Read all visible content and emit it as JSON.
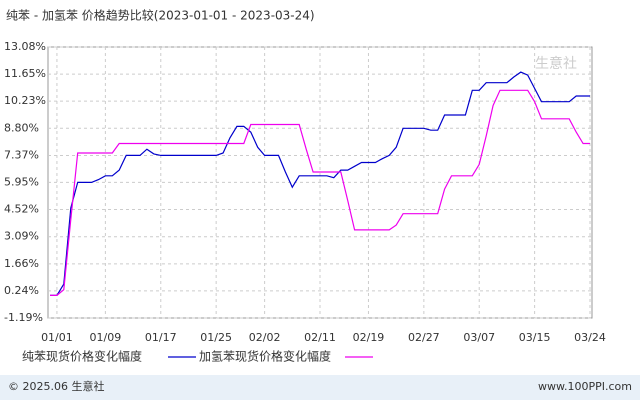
{
  "chart_data": {
    "type": "line",
    "title": "纯苯 - 加氢苯 价格趋势比较(2023-01-01 - 2023-03-24)",
    "watermark": "生意社",
    "footer_left": "© 2025.06 生意社",
    "footer_right": "www.100PPI.com",
    "categories": [
      null,
      "01/01",
      null,
      null,
      null,
      null,
      null,
      null,
      "01/09",
      null,
      null,
      null,
      null,
      null,
      null,
      null,
      "01/17",
      null,
      null,
      null,
      null,
      null,
      null,
      null,
      "01/25",
      null,
      null,
      null,
      null,
      null,
      null,
      "02/02",
      null,
      null,
      null,
      null,
      null,
      null,
      null,
      "02/11",
      null,
      null,
      null,
      null,
      null,
      null,
      "02/19",
      null,
      null,
      null,
      null,
      null,
      null,
      null,
      "02/27",
      null,
      null,
      null,
      null,
      null,
      null,
      null,
      "03/07",
      null,
      null,
      null,
      null,
      null,
      null,
      null,
      "03/15",
      null,
      null,
      null,
      null,
      null,
      null,
      null,
      "03/24"
    ],
    "series": [
      {
        "name": "纯苯现货价格变化幅度",
        "color": "#0000cc",
        "values": [
          0,
          0,
          0.6,
          4.6,
          5.95,
          5.95,
          5.95,
          6.1,
          6.3,
          6.3,
          6.6,
          7.37,
          7.37,
          7.37,
          7.7,
          7.45,
          7.37,
          7.37,
          7.37,
          7.37,
          7.37,
          7.37,
          7.37,
          7.37,
          7.37,
          7.5,
          8.3,
          8.9,
          8.9,
          8.6,
          7.8,
          7.37,
          7.37,
          7.37,
          6.5,
          5.7,
          6.3,
          6.3,
          6.3,
          6.3,
          6.3,
          6.2,
          6.6,
          6.6,
          6.8,
          7.0,
          7.0,
          7.0,
          7.2,
          7.37,
          7.8,
          8.8,
          8.8,
          8.8,
          8.8,
          8.7,
          8.7,
          9.5,
          9.5,
          9.5,
          9.5,
          10.8,
          10.8,
          11.2,
          11.2,
          11.2,
          11.2,
          11.5,
          11.76,
          11.6,
          10.9,
          10.2,
          10.2,
          10.2,
          10.2,
          10.2,
          10.5,
          10.5,
          10.5
        ]
      },
      {
        "name": "加氢苯现货价格变化幅度",
        "color": "#ee00ee",
        "values": [
          0,
          0,
          0.3,
          4.0,
          7.5,
          7.5,
          7.5,
          7.5,
          7.5,
          7.5,
          8.0,
          8.0,
          8.0,
          8.0,
          8.0,
          8.0,
          8.0,
          8.0,
          8.0,
          8.0,
          8.0,
          8.0,
          8.0,
          8.0,
          8.0,
          8.0,
          8.0,
          8.0,
          8.0,
          9.0,
          9.0,
          9.0,
          9.0,
          9.0,
          9.0,
          9.0,
          9.0,
          7.7,
          6.5,
          6.5,
          6.5,
          6.5,
          6.5,
          5.0,
          3.45,
          3.45,
          3.45,
          3.45,
          3.45,
          3.45,
          3.7,
          4.3,
          4.3,
          4.3,
          4.3,
          4.3,
          4.3,
          5.6,
          6.3,
          6.3,
          6.3,
          6.3,
          6.9,
          8.4,
          10.0,
          10.8,
          10.8,
          10.8,
          10.8,
          10.8,
          10.2,
          9.3,
          9.3,
          9.3,
          9.3,
          9.3,
          8.6,
          8.0,
          8.0
        ]
      }
    ],
    "ylim": [
      -1.19,
      13.08
    ],
    "yticks": [
      {
        "value": 13.08,
        "label": "13.08%"
      },
      {
        "value": 11.65,
        "label": "11.65%"
      },
      {
        "value": 10.23,
        "label": "10.23%"
      },
      {
        "value": 8.8,
        "label": "8.80%"
      },
      {
        "value": 7.37,
        "label": "7.37%"
      },
      {
        "value": 5.95,
        "label": "5.95%"
      },
      {
        "value": 4.52,
        "label": "4.52%"
      },
      {
        "value": 3.09,
        "label": "3.09%"
      },
      {
        "value": 1.66,
        "label": "1.66%"
      },
      {
        "value": 0.24,
        "label": "0.24%"
      },
      {
        "value": -1.19,
        "label": "-1.19%"
      }
    ],
    "grid": true
  }
}
